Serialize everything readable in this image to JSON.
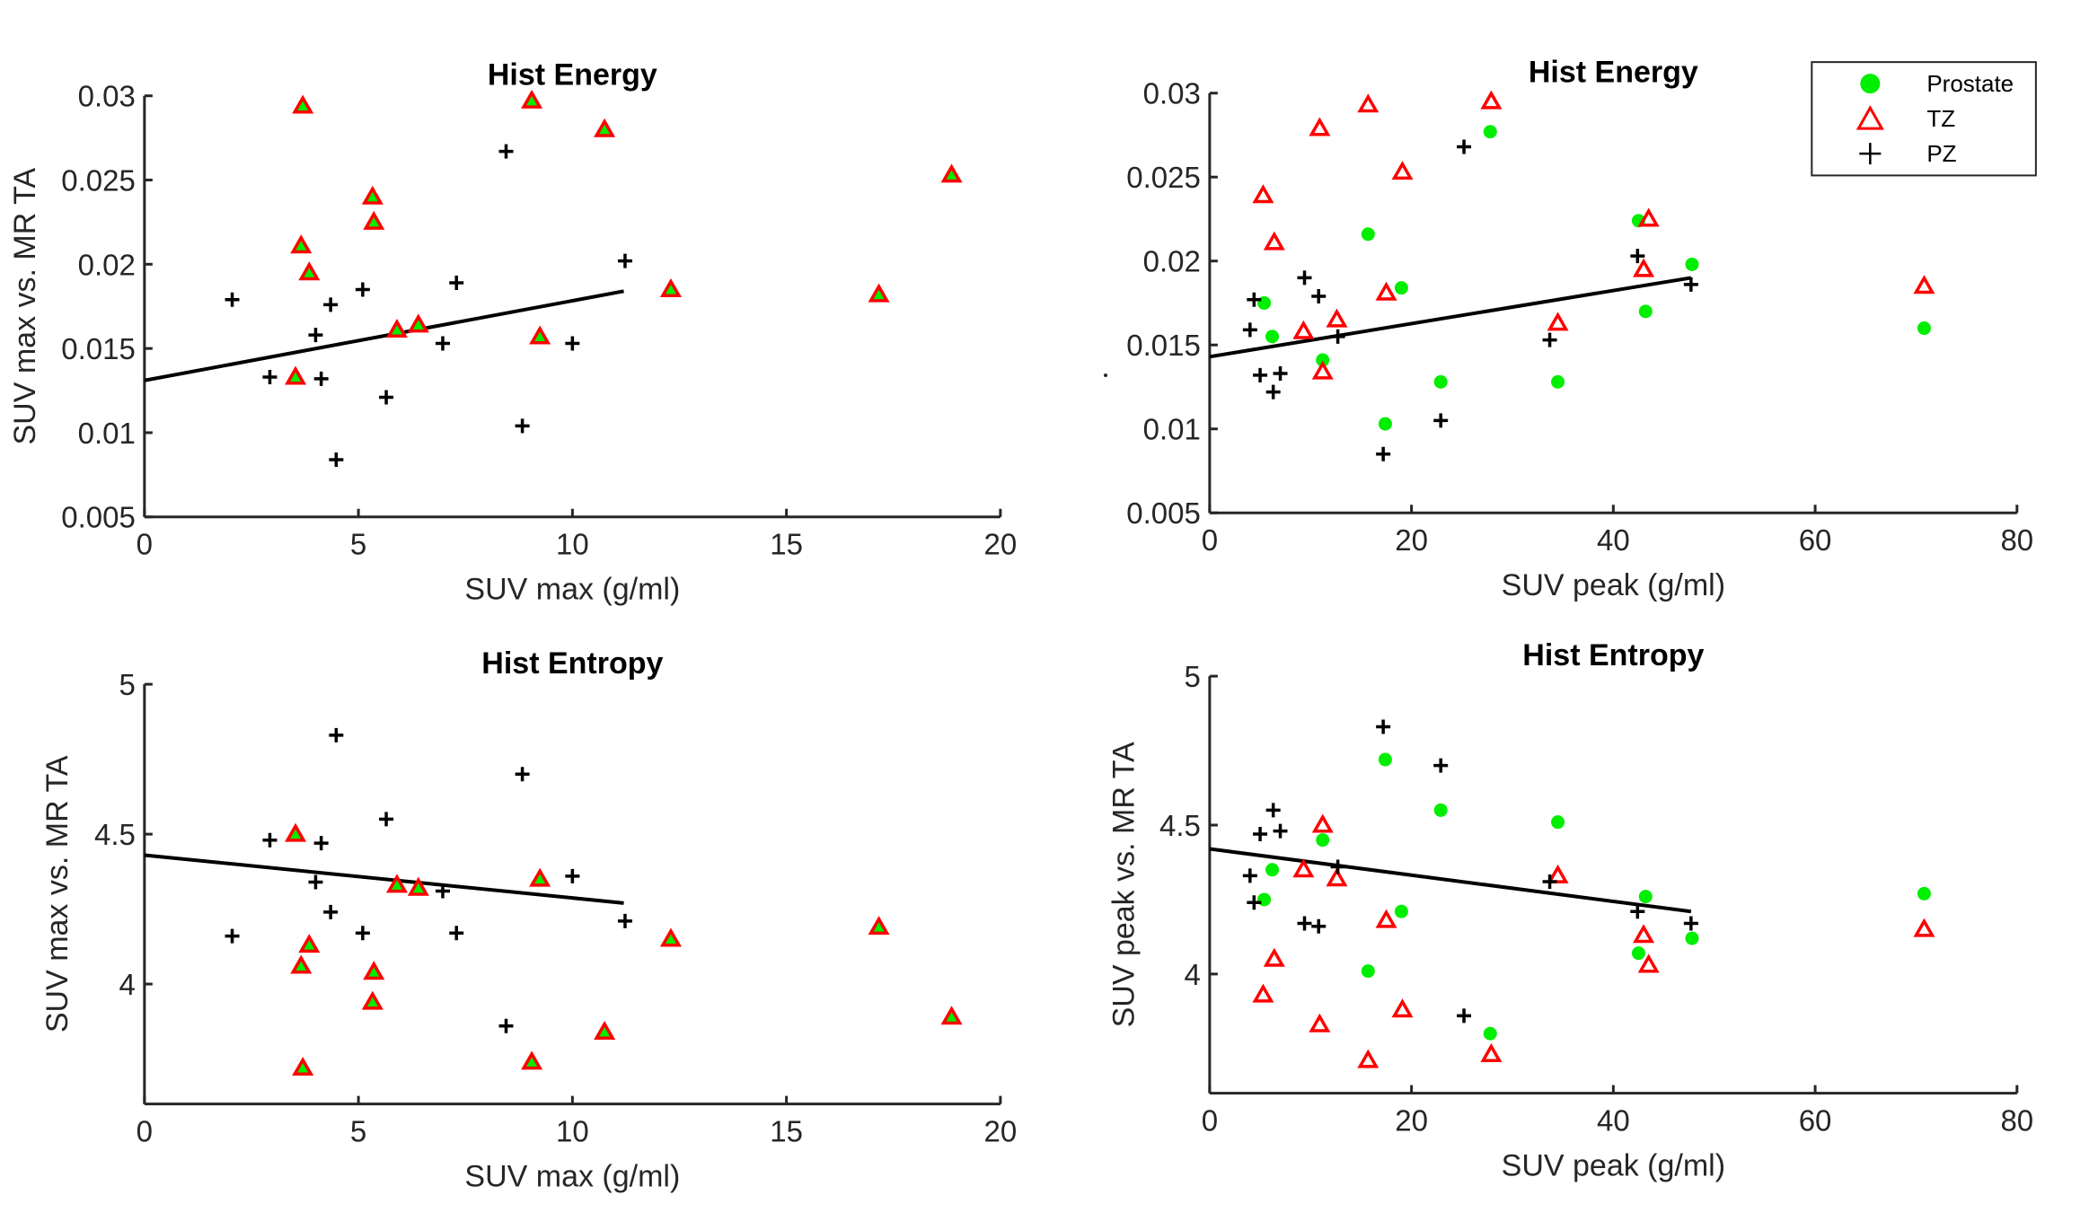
{
  "legend": {
    "placement": "top-right",
    "entries": [
      {
        "label": "Prostate",
        "marker": "filled-circle",
        "color": "#00ee00"
      },
      {
        "label": "TZ",
        "marker": "open-triangle",
        "color": "#ff0000"
      },
      {
        "label": "PZ",
        "marker": "plus",
        "color": "#000000"
      }
    ]
  },
  "chart_data": [
    {
      "id": "energy-max",
      "type": "scatter",
      "title": "Hist Energy",
      "xlabel": "SUV max (g/ml)",
      "ylabel": "SUV max vs. MR TA",
      "xlim": [
        0,
        20
      ],
      "ylim": [
        0.005,
        0.03
      ],
      "xticks": [
        0,
        5,
        10,
        15,
        20
      ],
      "xtick_labels": [
        "0",
        "5",
        "10",
        "15",
        "20"
      ],
      "yticks": [
        0.005,
        0.01,
        0.015,
        0.02,
        0.025,
        0.03
      ],
      "ytick_labels": [
        "0.005",
        "0.01",
        "0.015",
        "0.02",
        "0.025",
        "0.03"
      ],
      "grid": false,
      "series": [
        {
          "name": "Prostate",
          "marker": "filled-circle",
          "overlaid_with_tz": true,
          "points": []
        },
        {
          "name": "TZ",
          "marker": "open-triangle",
          "fill": "#00ee00",
          "points": [
            [
              3.7,
              0.0294
            ],
            [
              9.05,
              0.0297
            ],
            [
              10.75,
              0.028
            ],
            [
              18.86,
              0.0253
            ],
            [
              5.33,
              0.024
            ],
            [
              5.36,
              0.0225
            ],
            [
              3.66,
              0.0211
            ],
            [
              3.85,
              0.0195
            ],
            [
              12.3,
              0.0185
            ],
            [
              17.16,
              0.0182
            ],
            [
              9.24,
              0.0157
            ],
            [
              5.9,
              0.0161
            ],
            [
              6.4,
              0.0164
            ],
            [
              3.53,
              0.0133
            ]
          ]
        },
        {
          "name": "PZ",
          "marker": "plus",
          "points": [
            [
              2.05,
              0.0179
            ],
            [
              2.93,
              0.0133
            ],
            [
              4.0,
              0.0158
            ],
            [
              4.13,
              0.0132
            ],
            [
              4.35,
              0.0176
            ],
            [
              4.48,
              0.0084
            ],
            [
              5.1,
              0.0185
            ],
            [
              5.65,
              0.0121
            ],
            [
              6.97,
              0.0153
            ],
            [
              7.29,
              0.0189
            ],
            [
              8.45,
              0.0267
            ],
            [
              8.83,
              0.0104
            ],
            [
              10.0,
              0.0153
            ],
            [
              11.23,
              0.0202
            ]
          ]
        }
      ],
      "fit_line": {
        "x": [
          0,
          11.2
        ],
        "y": [
          0.0131,
          0.0184
        ]
      }
    },
    {
      "id": "energy-peak",
      "type": "scatter",
      "title": "Hist Energy",
      "xlabel": "SUV peak (g/ml)",
      "ylabel": "",
      "xlim": [
        0,
        80
      ],
      "ylim": [
        0.005,
        0.03
      ],
      "xticks": [
        0,
        20,
        40,
        60,
        80
      ],
      "xtick_labels": [
        "0",
        "20",
        "40",
        "60",
        "80"
      ],
      "yticks": [
        0.005,
        0.01,
        0.015,
        0.02,
        0.025,
        0.03
      ],
      "ytick_labels": [
        "0.005",
        "0.01",
        "0.015",
        "0.02",
        "0.025",
        "0.03"
      ],
      "grid": false,
      "series": [
        {
          "name": "Prostate",
          "marker": "filled-circle",
          "points": [
            [
              27.8,
              0.0277
            ],
            [
              15.7,
              0.0216
            ],
            [
              42.5,
              0.0224
            ],
            [
              47.8,
              0.0198
            ],
            [
              5.4,
              0.0175
            ],
            [
              19.0,
              0.0184
            ],
            [
              6.2,
              0.0155
            ],
            [
              11.2,
              0.0141
            ],
            [
              43.2,
              0.017
            ],
            [
              17.4,
              0.0103
            ],
            [
              22.9,
              0.0128
            ],
            [
              34.5,
              0.0128
            ],
            [
              70.8,
              0.016
            ]
          ]
        },
        {
          "name": "TZ",
          "marker": "open-triangle",
          "points": [
            [
              15.7,
              0.0293
            ],
            [
              27.9,
              0.0295
            ],
            [
              10.9,
              0.0279
            ],
            [
              19.1,
              0.0253
            ],
            [
              5.3,
              0.0239
            ],
            [
              6.4,
              0.0211
            ],
            [
              43.5,
              0.0225
            ],
            [
              43.0,
              0.0195
            ],
            [
              17.5,
              0.0181
            ],
            [
              12.6,
              0.0165
            ],
            [
              9.3,
              0.0158
            ],
            [
              11.2,
              0.0134
            ],
            [
              34.5,
              0.0163
            ],
            [
              70.8,
              0.0185
            ]
          ]
        },
        {
          "name": "PZ",
          "marker": "plus",
          "points": [
            [
              4.0,
              0.0159
            ],
            [
              4.4,
              0.0177
            ],
            [
              5.0,
              0.0132
            ],
            [
              6.3,
              0.0122
            ],
            [
              7.0,
              0.0133
            ],
            [
              9.4,
              0.019
            ],
            [
              10.8,
              0.0179
            ],
            [
              12.7,
              0.0155
            ],
            [
              17.2,
              0.0085
            ],
            [
              22.9,
              0.0105
            ],
            [
              25.2,
              0.0268
            ],
            [
              33.7,
              0.0153
            ],
            [
              42.4,
              0.0203
            ],
            [
              47.7,
              0.0186
            ]
          ]
        }
      ],
      "fit_line": {
        "x": [
          0,
          47.7
        ],
        "y": [
          0.0143,
          0.019
        ]
      }
    },
    {
      "id": "entropy-max",
      "type": "scatter",
      "title": "Hist Entropy",
      "xlabel": "SUV max (g/ml)",
      "ylabel": "SUV max vs. MR TA",
      "xlim": [
        0,
        20
      ],
      "ylim": [
        3.6,
        5
      ],
      "xticks": [
        0,
        5,
        10,
        15,
        20
      ],
      "xtick_labels": [
        "0",
        "5",
        "10",
        "15",
        "20"
      ],
      "yticks": [
        4,
        4.5,
        5
      ],
      "ytick_labels": [
        "4",
        "4.5",
        "5"
      ],
      "grid": false,
      "series": [
        {
          "name": "Prostate",
          "marker": "filled-circle",
          "overlaid_with_tz": true,
          "points": []
        },
        {
          "name": "TZ",
          "marker": "open-triangle",
          "fill": "#00ee00",
          "points": [
            [
              3.53,
              4.5
            ],
            [
              5.9,
              4.33
            ],
            [
              6.4,
              4.32
            ],
            [
              9.24,
              4.35
            ],
            [
              12.3,
              4.15
            ],
            [
              17.16,
              4.19
            ],
            [
              3.85,
              4.13
            ],
            [
              3.66,
              4.06
            ],
            [
              5.36,
              4.04
            ],
            [
              5.33,
              3.94
            ],
            [
              18.86,
              3.89
            ],
            [
              10.75,
              3.84
            ],
            [
              9.05,
              3.74
            ],
            [
              3.7,
              3.72
            ]
          ]
        },
        {
          "name": "PZ",
          "marker": "plus",
          "points": [
            [
              2.05,
              4.16
            ],
            [
              2.93,
              4.48
            ],
            [
              4.0,
              4.34
            ],
            [
              4.13,
              4.47
            ],
            [
              4.35,
              4.24
            ],
            [
              4.48,
              4.83
            ],
            [
              5.1,
              4.17
            ],
            [
              5.65,
              4.55
            ],
            [
              6.97,
              4.31
            ],
            [
              7.29,
              4.17
            ],
            [
              8.45,
              3.86
            ],
            [
              8.83,
              4.7
            ],
            [
              10.0,
              4.36
            ],
            [
              11.23,
              4.21
            ]
          ]
        }
      ],
      "fit_line": {
        "x": [
          0,
          11.2
        ],
        "y": [
          4.43,
          4.27
        ]
      }
    },
    {
      "id": "entropy-peak",
      "type": "scatter",
      "title": "Hist Entropy",
      "xlabel": "SUV peak (g/ml)",
      "ylabel": "SUV peak vs. MR TA",
      "xlim": [
        0,
        80
      ],
      "ylim": [
        3.6,
        5
      ],
      "xticks": [
        0,
        20,
        40,
        60,
        80
      ],
      "xtick_labels": [
        "0",
        "20",
        "40",
        "60",
        "80"
      ],
      "yticks": [
        4,
        4.5,
        5
      ],
      "ytick_labels": [
        "4",
        "4.5",
        "5"
      ],
      "grid": false,
      "series": [
        {
          "name": "Prostate",
          "marker": "filled-circle",
          "points": [
            [
              17.4,
              4.72
            ],
            [
              22.9,
              4.55
            ],
            [
              34.5,
              4.51
            ],
            [
              11.2,
              4.45
            ],
            [
              6.2,
              4.35
            ],
            [
              5.4,
              4.25
            ],
            [
              19.0,
              4.21
            ],
            [
              43.2,
              4.26
            ],
            [
              70.8,
              4.27
            ],
            [
              42.5,
              4.07
            ],
            [
              47.8,
              4.12
            ],
            [
              15.7,
              4.01
            ],
            [
              27.8,
              3.8
            ]
          ]
        },
        {
          "name": "TZ",
          "marker": "open-triangle",
          "points": [
            [
              11.2,
              4.5
            ],
            [
              9.3,
              4.35
            ],
            [
              12.6,
              4.32
            ],
            [
              34.5,
              4.33
            ],
            [
              17.5,
              4.18
            ],
            [
              6.4,
              4.05
            ],
            [
              43.0,
              4.13
            ],
            [
              43.5,
              4.03
            ],
            [
              70.8,
              4.15
            ],
            [
              5.3,
              3.93
            ],
            [
              19.1,
              3.88
            ],
            [
              10.9,
              3.83
            ],
            [
              15.7,
              3.71
            ],
            [
              27.9,
              3.73
            ]
          ]
        },
        {
          "name": "PZ",
          "marker": "plus",
          "points": [
            [
              17.2,
              4.83
            ],
            [
              22.9,
              4.7
            ],
            [
              6.3,
              4.55
            ],
            [
              5.0,
              4.47
            ],
            [
              7.0,
              4.48
            ],
            [
              12.7,
              4.36
            ],
            [
              4.0,
              4.33
            ],
            [
              4.4,
              4.24
            ],
            [
              9.4,
              4.17
            ],
            [
              10.8,
              4.16
            ],
            [
              33.7,
              4.31
            ],
            [
              42.4,
              4.21
            ],
            [
              47.7,
              4.17
            ],
            [
              25.2,
              3.86
            ]
          ]
        }
      ],
      "fit_line": {
        "x": [
          0,
          47.7
        ],
        "y": [
          4.42,
          4.21
        ]
      }
    }
  ]
}
